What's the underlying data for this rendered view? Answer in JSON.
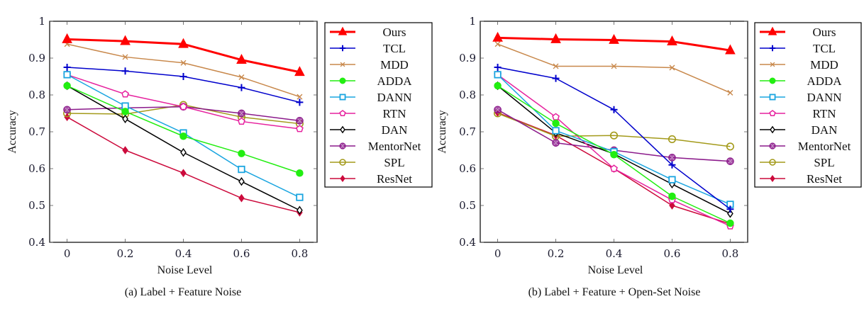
{
  "chart_data": [
    {
      "type": "line",
      "caption": "(a) Label + Feature Noise",
      "xlabel": "Noise Level",
      "ylabel": "Accuracy",
      "x": [
        0,
        0.2,
        0.4,
        0.6,
        0.8
      ],
      "xticks": [
        "0",
        "0.2",
        "0.4",
        "0.6",
        "0.8"
      ],
      "yticks": [
        "0.4",
        "0.5",
        "0.6",
        "0.7",
        "0.8",
        "0.9",
        "1"
      ],
      "xlim": [
        -0.06,
        0.86
      ],
      "ylim": [
        0.4,
        1.0
      ],
      "grid": false,
      "legend_position": "outside-right",
      "series": [
        {
          "name": "Ours",
          "color": "#ff0000",
          "marker": "triangle",
          "values": [
            0.951,
            0.946,
            0.938,
            0.895,
            0.862
          ]
        },
        {
          "name": "TCL",
          "color": "#0000cc",
          "marker": "plus",
          "values": [
            0.875,
            0.865,
            0.85,
            0.82,
            0.78
          ]
        },
        {
          "name": "MDD",
          "color": "#c8884b",
          "marker": "x",
          "values": [
            0.938,
            0.903,
            0.887,
            0.848,
            0.795
          ]
        },
        {
          "name": "ADDA",
          "color": "#22ee11",
          "marker": "filled-circle",
          "values": [
            0.825,
            0.755,
            0.688,
            0.641,
            0.588
          ]
        },
        {
          "name": "DANN",
          "color": "#1aa5e0",
          "marker": "square",
          "values": [
            0.855,
            0.77,
            0.697,
            0.598,
            0.522
          ]
        },
        {
          "name": "RTN",
          "color": "#e6219e",
          "marker": "pentagon",
          "values": [
            0.855,
            0.802,
            0.768,
            0.728,
            0.708
          ]
        },
        {
          "name": "DAN",
          "color": "#000000",
          "marker": "diamond",
          "values": [
            0.825,
            0.735,
            0.644,
            0.565,
            0.487
          ]
        },
        {
          "name": "MentorNet",
          "color": "#8b1a8b",
          "marker": "otimes",
          "values": [
            0.76,
            0.765,
            0.768,
            0.75,
            0.73
          ]
        },
        {
          "name": "SPL",
          "color": "#a39a1a",
          "marker": "circle",
          "values": [
            0.75,
            0.748,
            0.773,
            0.74,
            0.722
          ]
        },
        {
          "name": "ResNet",
          "color": "#cc0a3c",
          "marker": "filled-diamond",
          "values": [
            0.74,
            0.65,
            0.588,
            0.52,
            0.481
          ]
        }
      ]
    },
    {
      "type": "line",
      "caption": "(b) Label + Feature + Open-Set Noise",
      "xlabel": "Noise Level",
      "ylabel": "Accuracy",
      "x": [
        0,
        0.2,
        0.4,
        0.6,
        0.8
      ],
      "xticks": [
        "0",
        "0.2",
        "0.4",
        "0.6",
        "0.8"
      ],
      "yticks": [
        "0.4",
        "0.5",
        "0.6",
        "0.7",
        "0.8",
        "0.9",
        "1"
      ],
      "xlim": [
        -0.06,
        0.86
      ],
      "ylim": [
        0.4,
        1.0
      ],
      "grid": false,
      "legend_position": "outside-right",
      "series": [
        {
          "name": "Ours",
          "color": "#ff0000",
          "marker": "triangle",
          "values": [
            0.955,
            0.951,
            0.949,
            0.945,
            0.921
          ]
        },
        {
          "name": "TCL",
          "color": "#0000cc",
          "marker": "plus",
          "values": [
            0.875,
            0.845,
            0.76,
            0.61,
            0.49
          ]
        },
        {
          "name": "MDD",
          "color": "#c8884b",
          "marker": "x",
          "values": [
            0.938,
            0.878,
            0.878,
            0.874,
            0.806
          ]
        },
        {
          "name": "ADDA",
          "color": "#22ee11",
          "marker": "filled-circle",
          "values": [
            0.825,
            0.723,
            0.638,
            0.525,
            0.452
          ]
        },
        {
          "name": "DANN",
          "color": "#1aa5e0",
          "marker": "square",
          "values": [
            0.855,
            0.703,
            0.646,
            0.57,
            0.503
          ]
        },
        {
          "name": "RTN",
          "color": "#e6219e",
          "marker": "pentagon",
          "values": [
            0.855,
            0.74,
            0.6,
            0.515,
            0.444
          ]
        },
        {
          "name": "DAN",
          "color": "#000000",
          "marker": "diamond",
          "values": [
            0.825,
            0.697,
            0.64,
            0.558,
            0.478
          ]
        },
        {
          "name": "MentorNet",
          "color": "#8b1a8b",
          "marker": "otimes",
          "values": [
            0.76,
            0.67,
            0.65,
            0.63,
            0.62
          ]
        },
        {
          "name": "SPL",
          "color": "#a39a1a",
          "marker": "circle",
          "values": [
            0.75,
            0.688,
            0.69,
            0.68,
            0.66
          ]
        },
        {
          "name": "ResNet",
          "color": "#cc0a3c",
          "marker": "filled-diamond",
          "values": [
            0.752,
            0.69,
            0.6,
            0.5,
            0.45
          ]
        }
      ]
    }
  ]
}
